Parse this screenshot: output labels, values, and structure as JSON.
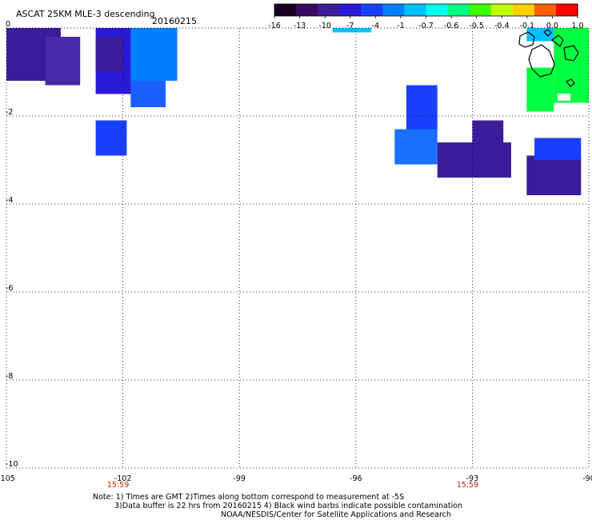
{
  "header": {
    "title": "ASCAT 25KM MLE-3 descending",
    "date": "20160215"
  },
  "colorbar": {
    "labels": [
      "-16",
      "-13",
      "-10",
      "-7",
      "-4",
      "-1",
      "-0.7",
      "-0.6",
      "-0.5",
      "-0.4",
      "-0.1",
      "0.0",
      "1.0"
    ],
    "colors": [
      "#1a0020",
      "#3a0a60",
      "#3c1c9a",
      "#2a1ad6",
      "#1a40ff",
      "#0080ff",
      "#00c0ff",
      "#00ffe8",
      "#00ff80",
      "#40ff00",
      "#c0ff00",
      "#ffd000",
      "#ff6000",
      "#ff0000"
    ]
  },
  "axes": {
    "y_ticks": [
      "0",
      "-2",
      "-4",
      "-6",
      "-8",
      "-10"
    ],
    "x_ticks": [
      "-105",
      "-102",
      "-99",
      "-96",
      "-93",
      "-90"
    ]
  },
  "times": [
    {
      "text": "15:59",
      "lon": -102
    },
    {
      "text": "15:59",
      "lon": -93
    }
  ],
  "colors": {
    "time_label": "#cc2200",
    "grid_dot": "#000000"
  },
  "notes": {
    "line1": "Note: 1) Times are GMT 2)Times along bottom correspond to measurement at -5S",
    "line2": "3)Data buffer is 22 hrs from 20160215 4) Black wind barbs indicate possible contamination",
    "line3": "NOAA/NESDIS/Center for Satellite Applications and Research"
  },
  "chart_data": {
    "type": "heatmap",
    "title": "ASCAT 25KM MLE-3 descending",
    "xlim": [
      -105,
      -90
    ],
    "ylim": [
      -10,
      0
    ],
    "x_ticks": [
      -105,
      -102,
      -99,
      -96,
      -93,
      -90
    ],
    "y_ticks": [
      0,
      -2,
      -4,
      -6,
      -8,
      -10
    ],
    "grid": true,
    "colorbar_values": [
      -16,
      -13,
      -10,
      -7,
      -4,
      -1,
      -0.7,
      -0.6,
      -0.5,
      -0.4,
      -0.1,
      0.0,
      1.0
    ],
    "swaths": [
      {
        "lon": [
          -105.0,
          -103.6
        ],
        "lat": [
          0.0,
          -1.2
        ],
        "color": "#3c1c9a"
      },
      {
        "lon": [
          -104.0,
          -103.1
        ],
        "lat": [
          -0.2,
          -1.3
        ],
        "color": "#4a2aa8"
      },
      {
        "lon": [
          -102.7,
          -101.5
        ],
        "lat": [
          0.0,
          -1.5
        ],
        "color": "#2a1ad6"
      },
      {
        "lon": [
          -101.8,
          -100.6
        ],
        "lat": [
          0.0,
          -1.2
        ],
        "color": "#0080ff"
      },
      {
        "lon": [
          -102.7,
          -102.0
        ],
        "lat": [
          -0.2,
          -1.0
        ],
        "color": "#3c1c9a"
      },
      {
        "lon": [
          -101.8,
          -100.9
        ],
        "lat": [
          -1.2,
          -1.8
        ],
        "color": "#1a60ff"
      },
      {
        "lon": [
          -102.7,
          -101.9
        ],
        "lat": [
          -2.1,
          -2.9
        ],
        "color": "#1a40ff"
      },
      {
        "lon": [
          -94.7,
          -93.9
        ],
        "lat": [
          -1.3,
          -2.3
        ],
        "color": "#1a40ff"
      },
      {
        "lon": [
          -95.0,
          -93.9
        ],
        "lat": [
          -2.3,
          -3.1
        ],
        "color": "#1a70ff"
      },
      {
        "lon": [
          -93.9,
          -92.0
        ],
        "lat": [
          -2.6,
          -3.4
        ],
        "color": "#3c1c9a"
      },
      {
        "lon": [
          -93.0,
          -92.2
        ],
        "lat": [
          -2.1,
          -2.6
        ],
        "color": "#3c1c9a"
      },
      {
        "lon": [
          -91.6,
          -90.2
        ],
        "lat": [
          -2.9,
          -3.8
        ],
        "color": "#3c1c9a"
      },
      {
        "lon": [
          -91.4,
          -90.2
        ],
        "lat": [
          -2.5,
          -3.0
        ],
        "color": "#1a40ff"
      },
      {
        "lon": [
          -90.9,
          -90.0
        ],
        "lat": [
          0.0,
          -1.7
        ],
        "color": "#00ff40"
      },
      {
        "lon": [
          -91.6,
          -90.9
        ],
        "lat": [
          -0.9,
          -1.9
        ],
        "color": "#00ff40"
      },
      {
        "lon": [
          -96.6,
          -95.6
        ],
        "lat": [
          0.0,
          -0.1
        ],
        "color": "#00c0ff"
      },
      {
        "lon": [
          -91.6,
          -90.9
        ],
        "lat": [
          0.0,
          -0.3
        ],
        "color": "#00c0ff"
      }
    ]
  }
}
